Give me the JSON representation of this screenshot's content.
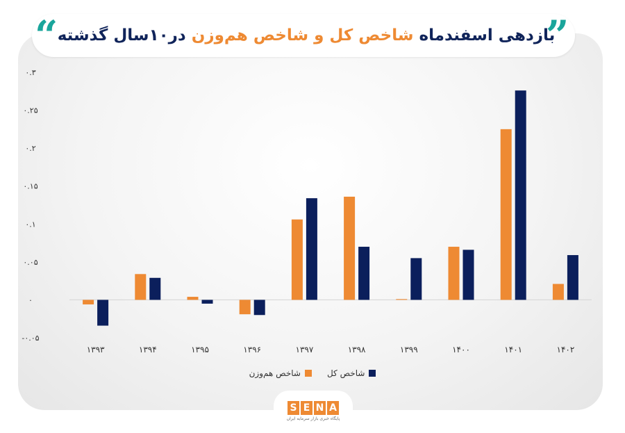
{
  "title": {
    "part1": "بازدهی اسفندماه",
    "part2": "شاخص کل و شاخص هم‌وزن",
    "part3": "در۱۰سال گذشته",
    "quote_left": "“",
    "quote_right": "”"
  },
  "colors": {
    "accent": "#ee8a33",
    "navy": "#10245a",
    "teal": "#1aa59b"
  },
  "logo": {
    "letters": [
      "S",
      "E",
      "N",
      "A"
    ],
    "subtitle": "پایگاه خبری بازار سرمایه ایران"
  },
  "chart_data": {
    "type": "bar",
    "categories": [
      "۱۳۹۳",
      "۱۳۹۴",
      "۱۳۹۵",
      "۱۳۹۶",
      "۱۳۹۷",
      "۱۳۹۸",
      "۱۳۹۹",
      "۱۴۰۰",
      "۱۴۰۱",
      "۱۴۰۲"
    ],
    "series": [
      {
        "name": "شاخص هم‌وزن",
        "color": "#ee8a33",
        "values": [
          -0.006,
          0.034,
          0.004,
          -0.019,
          0.106,
          0.136,
          0.001,
          0.07,
          0.225,
          0.021
        ]
      },
      {
        "name": "شاخص کل",
        "color": "#0b1f5c",
        "values": [
          -0.034,
          0.029,
          -0.005,
          -0.02,
          0.134,
          0.07,
          0.055,
          0.066,
          0.276,
          0.059
        ]
      }
    ],
    "yticks": [
      -0.05,
      0,
      0.05,
      0.1,
      0.15,
      0.2,
      0.25,
      0.3
    ],
    "ytick_labels": [
      "-۰.۰۵",
      "۰",
      "۰.۰۵",
      "۰.۱",
      "۰.۱۵",
      "۰.۲",
      "۰.۲۵",
      "۰.۳"
    ],
    "ylim": [
      -0.05,
      0.3
    ],
    "grid": false,
    "legend": "bottom-center"
  }
}
